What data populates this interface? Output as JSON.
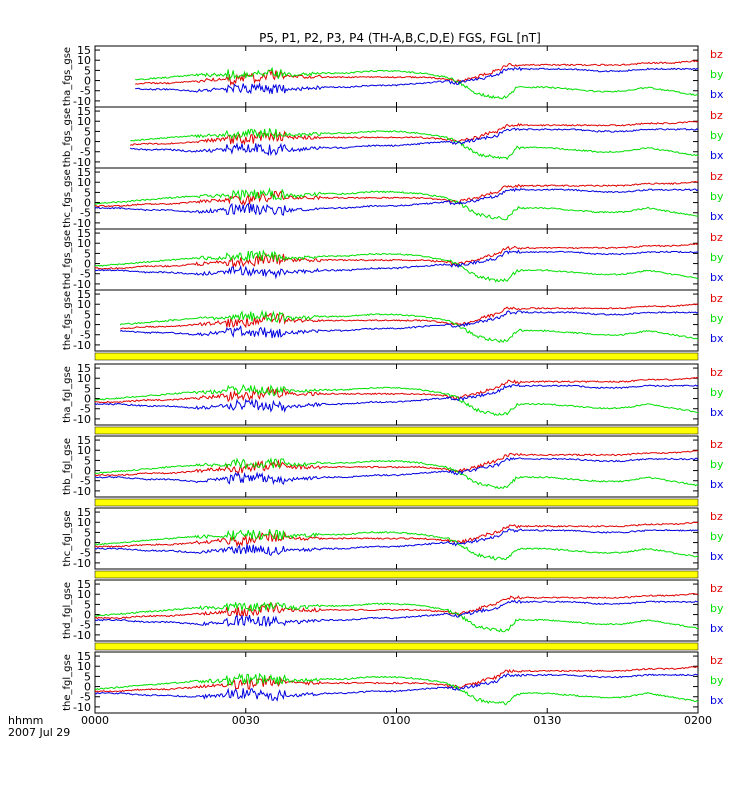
{
  "title": "P5, P1, P2, P3, P4 (TH-A,B,C,D,E) FGS, FGL [nT]",
  "footer": {
    "time_label": "hhmm",
    "date_label": "2007 Jul 29"
  },
  "colors": {
    "bz": "#e00000",
    "by": "#00e000",
    "bx": "#0000e0",
    "flag": "#ffff00",
    "axis": "#000000"
  },
  "chart_data": {
    "type": "line",
    "xticks": [
      "0000",
      "0030",
      "0100",
      "0130",
      "0200"
    ],
    "xlim_minutes": [
      0,
      120
    ],
    "ylim": [
      -13,
      17
    ],
    "yticks": [
      -10,
      -5,
      0,
      5,
      10,
      15
    ],
    "ytick_labels": [
      "-10",
      "-5",
      "0",
      "5",
      "10",
      "15"
    ],
    "legend": [
      "bz",
      "by",
      "bx"
    ],
    "panels": [
      {
        "ylabel": "tha_fgs_gse",
        "start": 8,
        "flag_below": false
      },
      {
        "ylabel": "thb_fgs_gse",
        "start": 7,
        "flag_below": false
      },
      {
        "ylabel": "thc_fgs_gse",
        "start": 0,
        "flag_below": false
      },
      {
        "ylabel": "thd_fgs_gse",
        "start": 0,
        "flag_below": false
      },
      {
        "ylabel": "the_fgs_gse",
        "start": 5,
        "flag_below": true
      },
      {
        "ylabel": "tha_fgl_gse",
        "start": 0,
        "flag_below": true
      },
      {
        "ylabel": "thb_fgl_gse",
        "start": 0,
        "flag_below": true
      },
      {
        "ylabel": "thc_fgl_gse",
        "start": 0,
        "flag_below": true
      },
      {
        "ylabel": "thd_fgl_gse",
        "start": 0,
        "flag_below": true
      },
      {
        "ylabel": "the_fgl_gse",
        "start": 0,
        "flag_below": false
      }
    ],
    "series": [
      {
        "name": "bz",
        "x": [
          0,
          5,
          10,
          15,
          20,
          25,
          30,
          35,
          40,
          45,
          50,
          55,
          60,
          65,
          70,
          72,
          74,
          76,
          78,
          80,
          82,
          84,
          90,
          95,
          100,
          105,
          110,
          115,
          120
        ],
        "y": [
          -2,
          -2,
          -1,
          -1,
          0,
          1,
          1,
          3,
          2,
          2,
          2,
          2,
          2,
          2,
          1,
          0,
          1,
          2,
          4,
          5,
          8,
          8,
          8,
          8,
          8,
          8,
          9,
          9,
          10
        ]
      },
      {
        "name": "by",
        "x": [
          0,
          5,
          10,
          15,
          20,
          25,
          30,
          35,
          40,
          45,
          50,
          55,
          60,
          65,
          70,
          72,
          74,
          76,
          78,
          80,
          82,
          84,
          90,
          95,
          100,
          105,
          110,
          115,
          120
        ],
        "y": [
          -1,
          0,
          1,
          2,
          3,
          3,
          4,
          4,
          3,
          4,
          4,
          5,
          5,
          4,
          2,
          0,
          -3,
          -6,
          -7,
          -8,
          -8,
          -3,
          -3,
          -4,
          -5,
          -5,
          -3,
          -5,
          -7
        ]
      },
      {
        "name": "bx",
        "x": [
          0,
          5,
          10,
          15,
          20,
          25,
          30,
          35,
          40,
          45,
          50,
          55,
          60,
          65,
          70,
          72,
          74,
          76,
          78,
          80,
          82,
          84,
          90,
          95,
          100,
          105,
          110,
          115,
          120
        ],
        "y": [
          -3,
          -3,
          -4,
          -4,
          -5,
          -4,
          -3,
          -4,
          -4,
          -3,
          -3,
          -2,
          -2,
          -1,
          0,
          -1,
          0,
          1,
          2,
          3,
          6,
          6,
          6,
          6,
          5,
          5,
          6,
          6,
          6
        ]
      }
    ]
  }
}
